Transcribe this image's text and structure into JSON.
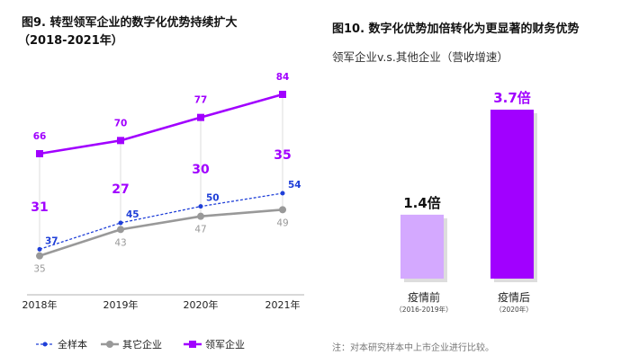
{
  "chart_data": [
    {
      "type": "line",
      "title": "图9. 转型领军企业的数字化优势持续扩大",
      "subtitle": "（2018-2021年）",
      "categories": [
        "2018年",
        "2019年",
        "2020年",
        "2021年"
      ],
      "series": [
        {
          "name": "全样本",
          "values": [
            37,
            45,
            50,
            54
          ],
          "color": "#1f3fd8",
          "style": "dashed",
          "marker": "dot"
        },
        {
          "name": "其它企业",
          "values": [
            35,
            43,
            47,
            49
          ],
          "color": "#999999",
          "style": "solid",
          "marker": "circle"
        },
        {
          "name": "领军企业",
          "values": [
            66,
            70,
            77,
            84
          ],
          "color": "#a100ff",
          "style": "solid",
          "marker": "square"
        }
      ],
      "gap_labels": [
        31,
        27,
        30,
        35
      ],
      "gap_color": "#a100ff",
      "legend": "bottom",
      "grid": false
    },
    {
      "type": "bar",
      "title": "图10. 数字化优势加倍转化为更显著的财务优势",
      "subtitle": "领军企业v.s.其他企业（营收增速）",
      "categories": [
        "疫情前",
        "疫情后"
      ],
      "category_notes": [
        "（2016-2019年）",
        "（2020年）"
      ],
      "values": [
        1.4,
        3.7
      ],
      "data_labels": [
        "1.4倍",
        "3.7倍"
      ],
      "colors": [
        "#d4a9ff",
        "#a100ff"
      ],
      "label_colors": [
        "#111111",
        "#a100ff"
      ],
      "note": "注：对本研究样本中上市企业进行比较。"
    }
  ]
}
